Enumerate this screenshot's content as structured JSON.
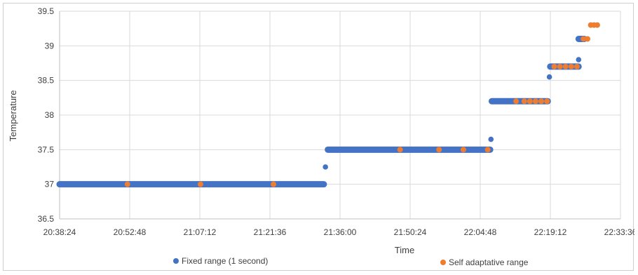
{
  "chart_data": {
    "type": "scatter",
    "title": "",
    "xlabel": "Time",
    "ylabel": "Temperature",
    "ylim": [
      36.5,
      39.5
    ],
    "yticks": [
      "36.5",
      "37",
      "37.5",
      "38",
      "38.5",
      "39",
      "39.5"
    ],
    "xlim": [
      "20:38:24",
      "22:33:36"
    ],
    "xticks": [
      "20:38:24",
      "20:52:48",
      "21:07:12",
      "21:21:36",
      "21:36:00",
      "21:50:24",
      "22:04:48",
      "22:19:12",
      "22:33:36"
    ],
    "grid": true,
    "legend_position": "bottom",
    "series": [
      {
        "name": "Fixed range (1 second)",
        "color": "#4472c4",
        "segments": [
          {
            "from": "20:38:24",
            "to": "21:32:40",
            "y": 37.0
          },
          {
            "from": "21:33:30",
            "to": "22:06:50",
            "y": 37.5
          },
          {
            "from": "22:07:10",
            "to": "22:18:40",
            "y": 38.2
          },
          {
            "from": "22:19:10",
            "to": "22:25:00",
            "y": 38.7
          },
          {
            "from": "22:25:00",
            "to": "22:26:10",
            "y": 39.1
          }
        ],
        "points": [
          {
            "x": "21:33:00",
            "y": 37.25
          },
          {
            "x": "22:07:00",
            "y": 37.65
          },
          {
            "x": "22:19:00",
            "y": 38.55
          },
          {
            "x": "22:25:00",
            "y": 38.8
          }
        ]
      },
      {
        "name": "Self adaptative range",
        "color": "#ed7d31",
        "points": [
          {
            "x": "20:52:20",
            "y": 37.0
          },
          {
            "x": "21:07:20",
            "y": 37.0
          },
          {
            "x": "21:22:20",
            "y": 37.0
          },
          {
            "x": "21:48:20",
            "y": 37.5
          },
          {
            "x": "21:56:20",
            "y": 37.5
          },
          {
            "x": "22:01:20",
            "y": 37.5
          },
          {
            "x": "22:06:20",
            "y": 37.5
          },
          {
            "x": "22:12:10",
            "y": 38.2
          },
          {
            "x": "22:13:50",
            "y": 38.2
          },
          {
            "x": "22:15:00",
            "y": 38.2
          },
          {
            "x": "22:16:10",
            "y": 38.2
          },
          {
            "x": "22:17:20",
            "y": 38.2
          },
          {
            "x": "22:18:30",
            "y": 38.2
          },
          {
            "x": "22:20:00",
            "y": 38.7
          },
          {
            "x": "22:21:10",
            "y": 38.7
          },
          {
            "x": "22:22:20",
            "y": 38.7
          },
          {
            "x": "22:23:30",
            "y": 38.7
          },
          {
            "x": "22:24:40",
            "y": 38.7
          },
          {
            "x": "22:26:00",
            "y": 39.1
          },
          {
            "x": "22:26:50",
            "y": 39.1
          },
          {
            "x": "22:27:30",
            "y": 39.3
          },
          {
            "x": "22:28:10",
            "y": 39.3
          },
          {
            "x": "22:28:50",
            "y": 39.3
          }
        ]
      }
    ]
  }
}
